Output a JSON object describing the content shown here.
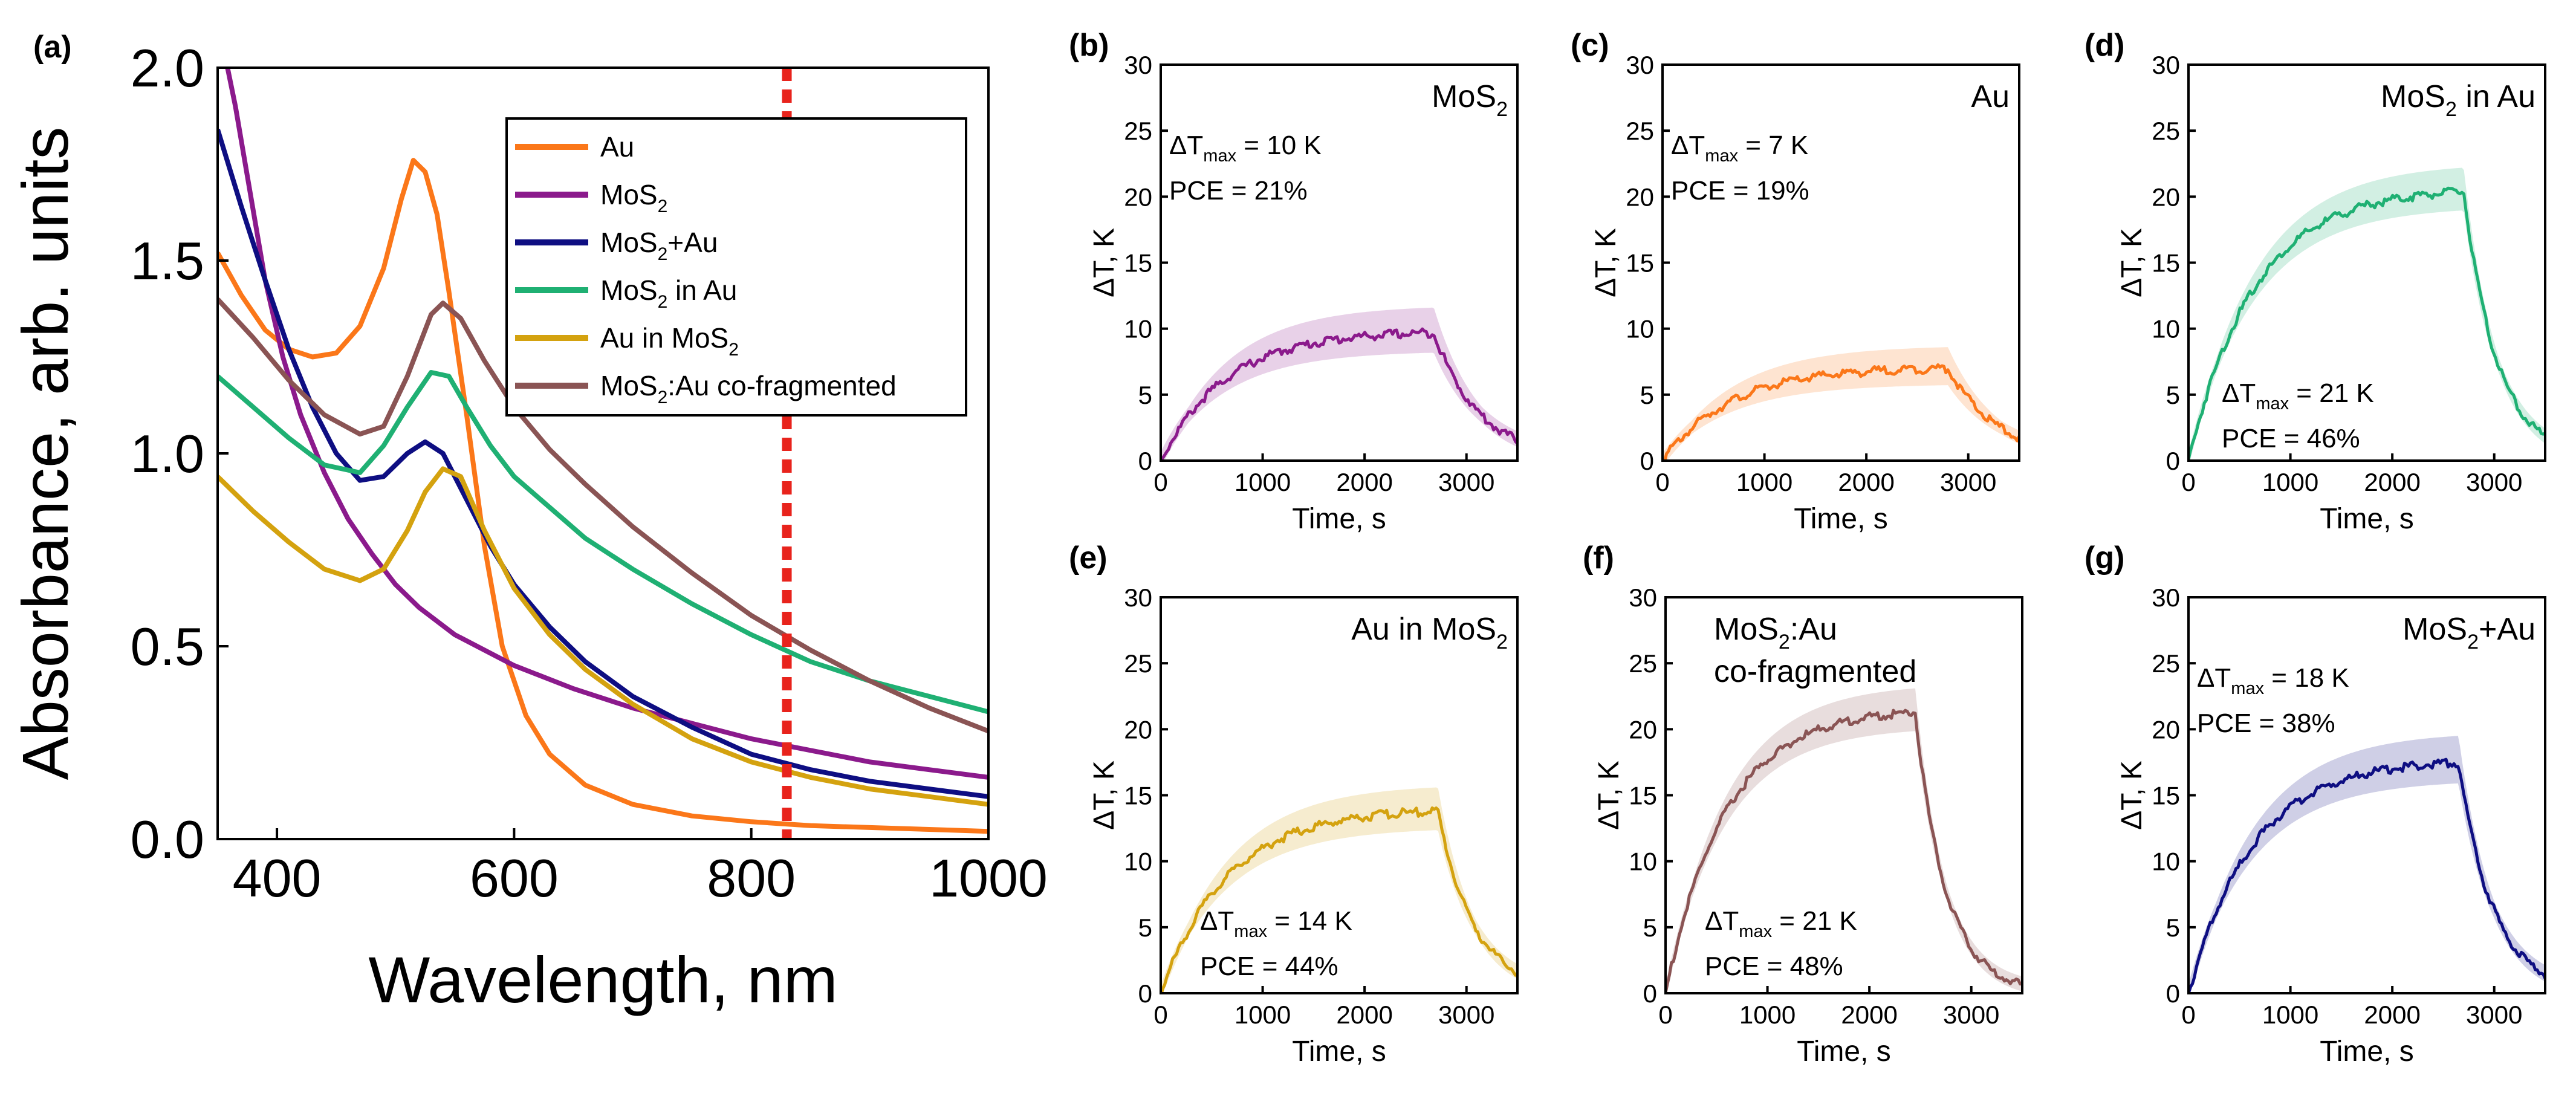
{
  "chart_data": [
    {
      "type": "line",
      "panel_label": "(a)",
      "xlabel": "Wavelength, nm",
      "ylabel": "Absorbance, arb. units",
      "xlim": [
        350,
        1000
      ],
      "ylim": [
        0.0,
        2.0
      ],
      "x_ticks": [
        400,
        600,
        800,
        1000
      ],
      "x_tick_labels": [
        "400",
        "600",
        "800",
        "1000"
      ],
      "y_ticks": [
        0.0,
        0.5,
        1.0,
        1.5,
        2.0
      ],
      "y_tick_labels": [
        "0.0",
        "0.5",
        "1.0",
        "1.5",
        "2.0"
      ],
      "reference_line_x": 830,
      "reference_line_color": "#e8231c",
      "legend_position": "top-right",
      "series": [
        {
          "name": "Au",
          "legend_main": "Au",
          "legend_sub": "",
          "legend_rest": "",
          "color": "#fb7719",
          "points": [
            [
              350,
              1.52
            ],
            [
              370,
              1.41
            ],
            [
              390,
              1.32
            ],
            [
              410,
              1.27
            ],
            [
              430,
              1.25
            ],
            [
              450,
              1.26
            ],
            [
              470,
              1.33
            ],
            [
              490,
              1.48
            ],
            [
              505,
              1.66
            ],
            [
              515,
              1.76
            ],
            [
              525,
              1.73
            ],
            [
              535,
              1.62
            ],
            [
              545,
              1.42
            ],
            [
              560,
              1.1
            ],
            [
              575,
              0.76
            ],
            [
              590,
              0.5
            ],
            [
              610,
              0.32
            ],
            [
              630,
              0.22
            ],
            [
              660,
              0.14
            ],
            [
              700,
              0.09
            ],
            [
              750,
              0.06
            ],
            [
              800,
              0.045
            ],
            [
              850,
              0.035
            ],
            [
              900,
              0.03
            ],
            [
              950,
              0.025
            ],
            [
              1000,
              0.02
            ]
          ]
        },
        {
          "name": "MoS2",
          "legend_main": "MoS",
          "legend_sub": "2",
          "legend_rest": "",
          "color": "#8b1a8c",
          "points": [
            [
              355,
              2.05
            ],
            [
              365,
              1.9
            ],
            [
              375,
              1.72
            ],
            [
              390,
              1.45
            ],
            [
              405,
              1.25
            ],
            [
              420,
              1.1
            ],
            [
              440,
              0.95
            ],
            [
              460,
              0.83
            ],
            [
              480,
              0.74
            ],
            [
              500,
              0.66
            ],
            [
              520,
              0.6
            ],
            [
              550,
              0.53
            ],
            [
              600,
              0.45
            ],
            [
              650,
              0.39
            ],
            [
              700,
              0.34
            ],
            [
              750,
              0.3
            ],
            [
              800,
              0.26
            ],
            [
              850,
              0.23
            ],
            [
              900,
              0.2
            ],
            [
              950,
              0.18
            ],
            [
              1000,
              0.16
            ]
          ]
        },
        {
          "name": "MoS2+Au",
          "legend_main": "MoS",
          "legend_sub": "2",
          "legend_rest": "+Au",
          "color": "#0e0e82",
          "points": [
            [
              350,
              1.84
            ],
            [
              370,
              1.64
            ],
            [
              390,
              1.45
            ],
            [
              410,
              1.27
            ],
            [
              430,
              1.12
            ],
            [
              450,
              1.0
            ],
            [
              470,
              0.93
            ],
            [
              490,
              0.94
            ],
            [
              510,
              1.0
            ],
            [
              525,
              1.03
            ],
            [
              540,
              1.0
            ],
            [
              560,
              0.88
            ],
            [
              580,
              0.76
            ],
            [
              600,
              0.66
            ],
            [
              630,
              0.55
            ],
            [
              660,
              0.46
            ],
            [
              700,
              0.37
            ],
            [
              750,
              0.29
            ],
            [
              800,
              0.22
            ],
            [
              850,
              0.18
            ],
            [
              900,
              0.15
            ],
            [
              950,
              0.13
            ],
            [
              1000,
              0.11
            ]
          ]
        },
        {
          "name": "MoS2 in Au",
          "legend_main": "MoS",
          "legend_sub": "2",
          "legend_rest": " in Au",
          "color": "#1fb073",
          "points": [
            [
              350,
              1.2
            ],
            [
              380,
              1.12
            ],
            [
              410,
              1.04
            ],
            [
              440,
              0.97
            ],
            [
              470,
              0.95
            ],
            [
              490,
              1.02
            ],
            [
              510,
              1.12
            ],
            [
              530,
              1.21
            ],
            [
              545,
              1.2
            ],
            [
              560,
              1.12
            ],
            [
              580,
              1.02
            ],
            [
              600,
              0.94
            ],
            [
              630,
              0.86
            ],
            [
              660,
              0.78
            ],
            [
              700,
              0.7
            ],
            [
              750,
              0.61
            ],
            [
              800,
              0.53
            ],
            [
              850,
              0.46
            ],
            [
              900,
              0.41
            ],
            [
              950,
              0.37
            ],
            [
              1000,
              0.33
            ]
          ]
        },
        {
          "name": "Au in MoS2",
          "legend_main": "Au in MoS",
          "legend_sub": "2",
          "legend_rest": "",
          "color": "#d4a20f",
          "points": [
            [
              350,
              0.94
            ],
            [
              380,
              0.85
            ],
            [
              410,
              0.77
            ],
            [
              440,
              0.7
            ],
            [
              470,
              0.67
            ],
            [
              490,
              0.7
            ],
            [
              510,
              0.8
            ],
            [
              525,
              0.9
            ],
            [
              540,
              0.96
            ],
            [
              555,
              0.94
            ],
            [
              575,
              0.8
            ],
            [
              600,
              0.65
            ],
            [
              630,
              0.53
            ],
            [
              660,
              0.44
            ],
            [
              700,
              0.35
            ],
            [
              750,
              0.26
            ],
            [
              800,
              0.2
            ],
            [
              850,
              0.16
            ],
            [
              900,
              0.13
            ],
            [
              950,
              0.11
            ],
            [
              1000,
              0.09
            ]
          ]
        },
        {
          "name": "MoS2:Au co-fragmented",
          "legend_main": "MoS",
          "legend_sub": "2",
          "legend_rest": ":Au co-fragmented",
          "color": "#8a5454",
          "points": [
            [
              350,
              1.4
            ],
            [
              380,
              1.3
            ],
            [
              410,
              1.19
            ],
            [
              440,
              1.1
            ],
            [
              470,
              1.05
            ],
            [
              490,
              1.07
            ],
            [
              510,
              1.2
            ],
            [
              530,
              1.36
            ],
            [
              540,
              1.39
            ],
            [
              555,
              1.35
            ],
            [
              575,
              1.24
            ],
            [
              600,
              1.12
            ],
            [
              630,
              1.01
            ],
            [
              660,
              0.92
            ],
            [
              700,
              0.81
            ],
            [
              750,
              0.69
            ],
            [
              800,
              0.58
            ],
            [
              850,
              0.49
            ],
            [
              900,
              0.41
            ],
            [
              950,
              0.34
            ],
            [
              1000,
              0.28
            ]
          ]
        }
      ]
    },
    {
      "type": "line",
      "panel_label": "(b)",
      "title_main": "MoS",
      "title_sub": "2",
      "title_rest": "",
      "color": "#8b1a8c",
      "tmax": 10,
      "plateau": 9.7,
      "t_off": 2680,
      "band": 1.9,
      "decay_tau": 450,
      "delta_label": "ΔT",
      "delta_sub": "max",
      "delta_text": " = 10 K",
      "pce_text": "PCE = 21%",
      "xlabel": "Time, s",
      "ylabel": "ΔT, K"
    },
    {
      "type": "line",
      "panel_label": "(c)",
      "title_main": "Au",
      "title_sub": "",
      "title_rest": "",
      "color": "#fb7719",
      "tmax": 7,
      "plateau": 7.0,
      "t_off": 2800,
      "band": 1.6,
      "decay_tau": 500,
      "delta_label": "ΔT",
      "delta_sub": "max",
      "delta_text": " = 7 K",
      "pce_text": "PCE = 19%",
      "xlabel": "Time, s",
      "ylabel": "ΔT, K"
    },
    {
      "type": "line",
      "panel_label": "(d)",
      "title_main": "MoS",
      "title_sub": "2",
      "title_rest": " in Au",
      "color": "#1fb073",
      "tmax": 21,
      "plateau": 20.4,
      "t_off": 2700,
      "band": 1.8,
      "decay_tau": 330,
      "delta_label": "ΔT",
      "delta_sub": "max",
      "delta_text": " = 21 K",
      "pce_text": "PCE = 46%",
      "xlabel": "Time, s",
      "ylabel": "ΔT, K"
    },
    {
      "type": "line",
      "panel_label": "(e)",
      "title_main": "Au in MoS",
      "title_sub": "2",
      "title_rest": "",
      "color": "#d4a20f",
      "tmax": 14,
      "plateau": 13.8,
      "t_off": 2720,
      "band": 1.8,
      "decay_tau": 360,
      "delta_label": "ΔT",
      "delta_sub": "max",
      "delta_text": " = 14 K",
      "pce_text": "PCE = 44%",
      "xlabel": "Time, s",
      "ylabel": "ΔT, K"
    },
    {
      "type": "line",
      "panel_label": "(f)",
      "title_main": "MoS",
      "title_sub": "2",
      "title_rest": ":Au",
      "title_line2": "co-fragmented",
      "color": "#8a5454",
      "tmax": 21,
      "plateau": 21.3,
      "t_off": 2450,
      "band": 1.8,
      "decay_tau": 300,
      "delta_label": "ΔT",
      "delta_sub": "max",
      "delta_text": " = 21 K",
      "pce_text": "PCE = 48%",
      "xlabel": "Time, s",
      "ylabel": "ΔT, K"
    },
    {
      "type": "line",
      "panel_label": "(g)",
      "title_main": "MoS",
      "title_sub": "2",
      "title_rest": "+Au",
      "color": "#0e0e82",
      "tmax": 18,
      "plateau": 17.5,
      "t_off": 2650,
      "band": 2.0,
      "decay_tau": 340,
      "delta_label": "ΔT",
      "delta_sub": "max",
      "delta_text": " = 18 K",
      "pce_text": "PCE = 38%",
      "xlabel": "Time, s",
      "ylabel": "ΔT, K"
    }
  ],
  "small_axes": {
    "xlim": [
      0,
      3500
    ],
    "ylim": [
      0,
      30
    ],
    "x_ticks": [
      0,
      1000,
      2000,
      3000
    ],
    "x_tick_labels": [
      "0",
      "1000",
      "2000",
      "3000"
    ],
    "y_ticks": [
      0,
      5,
      10,
      15,
      20,
      25,
      30
    ],
    "y_tick_labels": [
      "0",
      "5",
      "10",
      "15",
      "20",
      "25",
      "30"
    ]
  }
}
